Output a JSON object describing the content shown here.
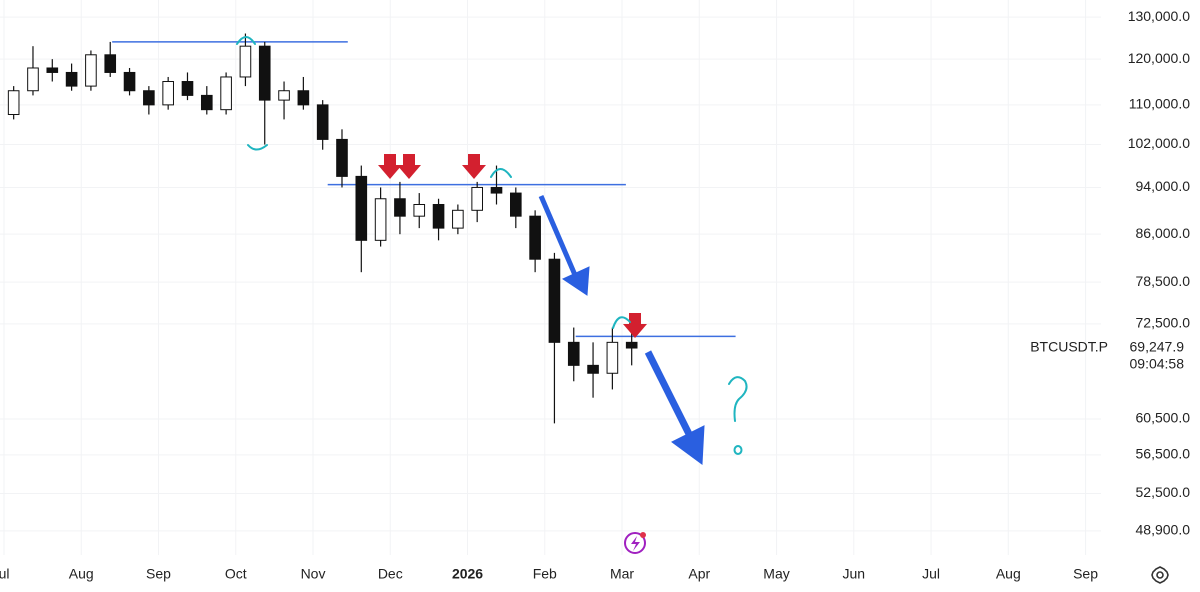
{
  "chart_data": {
    "type": "candlestick",
    "symbol": "BTCUSDT.P",
    "last_price": {
      "value": 69247.9,
      "label": "69,247.9"
    },
    "countdown": "09:04:58",
    "log_scale": true,
    "grid": true,
    "up_color": "#ffffff",
    "down_color": "#111111",
    "wick_color": "#111111",
    "hline_color": "#3d6fe0",
    "x": [
      0.125,
      0.375,
      0.625,
      0.875,
      1.125,
      1.375,
      1.625,
      1.875,
      2.125,
      2.375,
      2.625,
      2.875,
      3.125,
      3.375,
      3.625,
      3.875,
      4.125,
      4.375,
      4.625,
      4.875,
      5.125,
      5.375,
      5.625,
      5.875,
      6.125,
      6.375,
      6.625,
      6.875,
      7.125,
      7.375,
      7.625,
      7.875,
      8.125
    ],
    "open": [
      108000,
      113000,
      118000,
      117000,
      114000,
      121000,
      117000,
      113000,
      110000,
      115000,
      112000,
      109000,
      116000,
      123000,
      111000,
      113000,
      110000,
      103000,
      96000,
      85000,
      92000,
      89000,
      91000,
      87000,
      90000,
      94000,
      93000,
      89000,
      82000,
      70000,
      67000,
      66000,
      70000
    ],
    "high": [
      114000,
      123000,
      120000,
      119000,
      122000,
      124000,
      118000,
      114000,
      116000,
      117000,
      114000,
      117000,
      126000,
      124000,
      115000,
      116000,
      111000,
      105000,
      98000,
      94000,
      95000,
      93000,
      92000,
      91000,
      95000,
      98000,
      94000,
      90000,
      83000,
      72000,
      70000,
      72000,
      74000
    ],
    "low": [
      107000,
      112000,
      115000,
      113000,
      113000,
      116000,
      112000,
      108000,
      109000,
      111000,
      108000,
      108000,
      114000,
      102000,
      107000,
      109000,
      101000,
      94000,
      80000,
      84000,
      86000,
      87000,
      85000,
      86000,
      88000,
      91000,
      87000,
      80000,
      60000,
      65000,
      63000,
      64000,
      67000
    ],
    "close": [
      113000,
      118000,
      117000,
      114000,
      121000,
      117000,
      113000,
      110000,
      115000,
      112000,
      109000,
      116000,
      123000,
      111000,
      113000,
      110000,
      103000,
      96000,
      85000,
      92000,
      89000,
      91000,
      87000,
      90000,
      94000,
      93000,
      89000,
      82000,
      70000,
      67000,
      66000,
      70000,
      69247.9
    ],
    "hlines": [
      {
        "value": 124000,
        "start": 1.4,
        "end": 4.45
      },
      {
        "value": 94500,
        "start": 4.19,
        "end": 8.05
      },
      {
        "value": 70800,
        "start": 7.4,
        "end": 9.47
      }
    ],
    "xlim": [
      -0.026,
      14.2
    ],
    "xticks": [
      {
        "value": 0,
        "label": "ul"
      },
      {
        "value": 1,
        "label": "Aug"
      },
      {
        "value": 2,
        "label": "Sep"
      },
      {
        "value": 3,
        "label": "Oct"
      },
      {
        "value": 4,
        "label": "Nov"
      },
      {
        "value": 5,
        "label": "Dec"
      },
      {
        "value": 6,
        "label": "2026"
      },
      {
        "value": 7,
        "label": "Feb"
      },
      {
        "value": 8,
        "label": "Mar"
      },
      {
        "value": 9,
        "label": "Apr"
      },
      {
        "value": 10,
        "label": "May"
      },
      {
        "value": 11,
        "label": "Jun"
      },
      {
        "value": 12,
        "label": "Jul"
      },
      {
        "value": 13,
        "label": "Aug"
      },
      {
        "value": 14,
        "label": "Sep"
      }
    ],
    "ylim": [
      46700,
      134300
    ],
    "yticks": [
      {
        "value": 130000,
        "label": "130,000.0"
      },
      {
        "value": 120000,
        "label": "120,000.0"
      },
      {
        "value": 110000,
        "label": "110,000.0"
      },
      {
        "value": 102000,
        "label": "102,000.0"
      },
      {
        "value": 94000,
        "label": "94,000.0"
      },
      {
        "value": 86000,
        "label": "86,000.0"
      },
      {
        "value": 78500,
        "label": "78,500.0"
      },
      {
        "value": 72500,
        "label": "72,500.0"
      },
      {
        "value": 60500,
        "label": "60,500.0"
      },
      {
        "value": 56500,
        "label": "56,500.0"
      },
      {
        "value": 52500,
        "label": "52,500.0"
      },
      {
        "value": 48900,
        "label": "48,900.0"
      }
    ]
  }
}
